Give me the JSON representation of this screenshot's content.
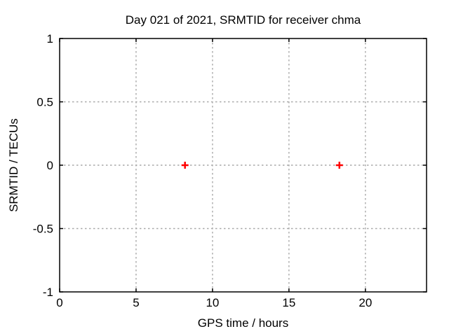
{
  "chart_data": {
    "type": "scatter",
    "title": "Day 021 of 2021, SRMTID for receiver chma",
    "xlabel": "GPS time / hours",
    "ylabel": "SRMTID / TECUs",
    "xlim": [
      0,
      24
    ],
    "ylim": [
      -1,
      1
    ],
    "xticks": [
      0,
      5,
      10,
      15,
      20
    ],
    "xtick_labels": [
      "0",
      "5",
      "10",
      "15",
      "20"
    ],
    "yticks": [
      -1,
      -0.5,
      0,
      0.5,
      1
    ],
    "ytick_labels": [
      "-1",
      "-0.5",
      "0",
      "0.5",
      "1"
    ],
    "grid": true,
    "legend": "none",
    "marker": "plus",
    "series": [
      {
        "name": "SRMTID",
        "points": [
          {
            "x": 8.2,
            "y": 0.0
          },
          {
            "x": 18.3,
            "y": 0.0
          }
        ]
      }
    ]
  },
  "colors": {
    "background": "#ffffff",
    "frame": "#000000",
    "grid": "#a9a9a9",
    "text": "#000000",
    "marker": "#ff0000"
  }
}
